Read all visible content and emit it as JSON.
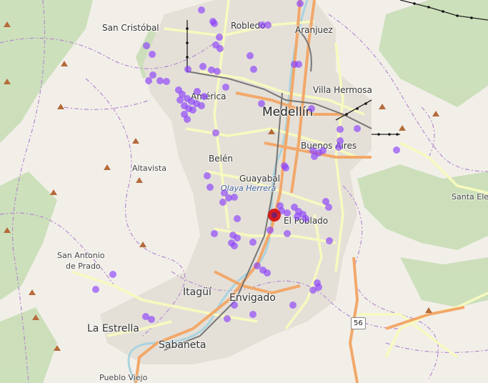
{
  "colors": {
    "land": "#f2efe9",
    "forest": "#add19e",
    "urban": "#dddddd",
    "major_road": "#f5b873",
    "secondary_road": "#f7fabf",
    "rail": "#808080",
    "river": "#aad3df",
    "boundary": "#b388c9",
    "point_fill": "#8a3ffc",
    "point_fill_alpha": 0.65,
    "highlight_fill": "#d50000",
    "highlight_inner": "#7a1c6a"
  },
  "labels": [
    {
      "id": "medellin",
      "text": "Medellín",
      "cls": "l-city"
    },
    {
      "id": "san-cristobal",
      "text": "San Cristóbal",
      "cls": "l-hood"
    },
    {
      "id": "robledo",
      "text": "Robledo",
      "cls": "l-hood"
    },
    {
      "id": "aranjuez",
      "text": "Aranjuez",
      "cls": "l-hood"
    },
    {
      "id": "america",
      "text": "América",
      "cls": "l-hood"
    },
    {
      "id": "villa-hermosa",
      "text": "Villa Hermosa",
      "cls": "l-hood"
    },
    {
      "id": "buenos-aires",
      "text": "Buenos Aires",
      "cls": "l-hood"
    },
    {
      "id": "belen",
      "text": "Belén",
      "cls": "l-hood"
    },
    {
      "id": "altavista",
      "text": "Altavista",
      "cls": "l-small"
    },
    {
      "id": "guayabal",
      "text": "Guayabal",
      "cls": "l-hood"
    },
    {
      "id": "olaya-herrera",
      "text": "Olaya Herrera",
      "cls": "l-park"
    },
    {
      "id": "santa-elena",
      "text": "Santa Ele",
      "cls": "l-small"
    },
    {
      "id": "el-poblado",
      "text": "El Poblado",
      "cls": "l-hood"
    },
    {
      "id": "san-antonio",
      "text": "San Antonio",
      "cls": "l-small"
    },
    {
      "id": "de-prado",
      "text": "de Prado",
      "cls": "l-small"
    },
    {
      "id": "itagui",
      "text": "Itagüí",
      "cls": "l-town"
    },
    {
      "id": "envigado",
      "text": "Envigado",
      "cls": "l-town"
    },
    {
      "id": "la-estrella",
      "text": "La Estrella",
      "cls": "l-town"
    },
    {
      "id": "sabaneta",
      "text": "Sabaneta",
      "cls": "l-town"
    },
    {
      "id": "pueblo-viejo",
      "text": "Pueblo Viejo",
      "cls": "l-small"
    }
  ],
  "road_shield": "56"
}
